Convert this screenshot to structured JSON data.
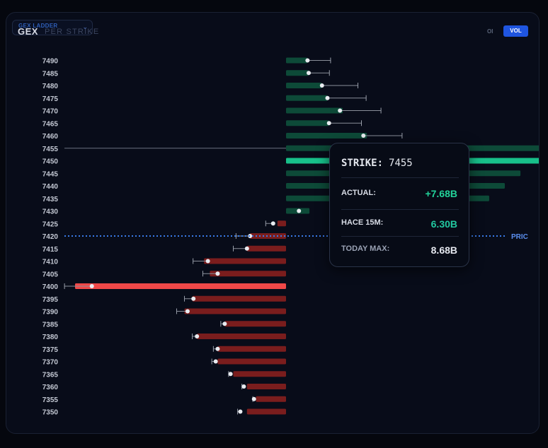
{
  "header": {
    "dropdown_label": "GEX LADDER",
    "title": "GEX",
    "subtitle": "PER STRIKE",
    "toggle_oi": "OI",
    "toggle_vol": "VOL"
  },
  "price_line_label": "PRIC",
  "tooltip": {
    "strike_label": "STRIKE:",
    "strike_value": "7455",
    "actual_label": "ACTUAL:",
    "actual_value": "+7.68B",
    "hace_label": "HACE 15M:",
    "hace_value": "6.30B",
    "today_max_label": "TODAY MAX:",
    "today_max_value": "8.68B"
  },
  "colors": {
    "positive": "#0d4a38",
    "positive_highlight": "#18c08a",
    "negative": "#7a1d1d",
    "negative_highlight": "#f04848",
    "price_line": "#3a7be8",
    "tooltip_positive": "#22d39a",
    "tooltip_hace": "#22c8a0"
  },
  "chart_data": {
    "type": "bar",
    "orientation": "horizontal",
    "strikes": [
      7490,
      7485,
      7480,
      7475,
      7470,
      7465,
      7460,
      7455,
      7450,
      7445,
      7440,
      7435,
      7430,
      7425,
      7420,
      7415,
      7410,
      7405,
      7400,
      7395,
      7390,
      7385,
      7380,
      7375,
      7370,
      7365,
      7360,
      7355,
      7350
    ],
    "values": [
      0.55,
      0.58,
      0.92,
      1.06,
      1.45,
      1.1,
      2.07,
      7.68,
      7.5,
      6.0,
      5.6,
      5.2,
      0.6,
      -0.22,
      -0.92,
      -1.0,
      -2.1,
      -1.95,
      -5.4,
      -2.4,
      -2.6,
      -1.57,
      -2.28,
      -1.75,
      -1.75,
      -1.35,
      -1.0,
      -0.77,
      -1.0
    ],
    "markers": [
      0.55,
      0.58,
      0.92,
      1.06,
      1.38,
      1.1,
      1.98,
      null,
      null,
      null,
      null,
      null,
      0.33,
      -0.33,
      -0.92,
      -1.0,
      -2.0,
      -1.75,
      -4.97,
      -2.37,
      -2.52,
      -1.57,
      -2.28,
      -1.75,
      -1.8,
      -1.42,
      -1.08,
      -0.82,
      -1.17
    ],
    "whiskers": [
      1.14,
      1.11,
      1.84,
      2.05,
      2.43,
      1.93,
      2.97,
      null,
      null,
      null,
      null,
      null,
      null,
      -0.52,
      -1.28,
      -1.35,
      -2.38,
      -2.13,
      -5.67,
      -2.6,
      -2.8,
      -1.67,
      -2.4,
      -1.86,
      -1.9,
      -1.47,
      -1.13,
      -0.85,
      -1.24
    ],
    "highlight_strikes": [
      7450,
      7400
    ],
    "spot_strike": 7455,
    "price_level": 7420,
    "xlim": [
      -5.67,
      7.68
    ]
  }
}
